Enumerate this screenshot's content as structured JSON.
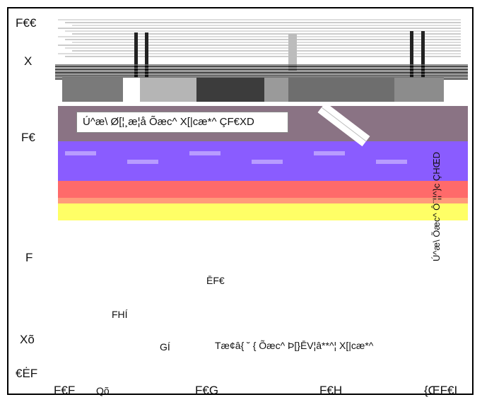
{
  "chart_data": {
    "type": "heatmap",
    "title": "",
    "y_tick_labels": [
      "F€€",
      "X",
      "F€",
      "F",
      "Xõ",
      "€ĖF"
    ],
    "x_tick_labels": [
      "F€F",
      "Qõ",
      "F€G",
      "F€H",
      "{ŒF€I"
    ],
    "xlabel": "Tæ¢â{ ˘ { Õæc^ Þ[}ĒV¦â**^¦ X[|cæ*^",
    "ylabel": "Ú^æ\\ Õæc^ Ô¨¦¦^}c ÇHŒD",
    "annotation": "Ú^æ\\ Ø[¦¸æ¦å Õæc^ X[|cæ*^ ÇF€XD",
    "inline_labels": [
      "ĒF€",
      "FHÍ",
      "GÍ"
    ],
    "color_bands": [
      "#7a7a7a",
      "#8a7384",
      "#8a5cff",
      "#ff6a6a",
      "#ffff66"
    ]
  }
}
